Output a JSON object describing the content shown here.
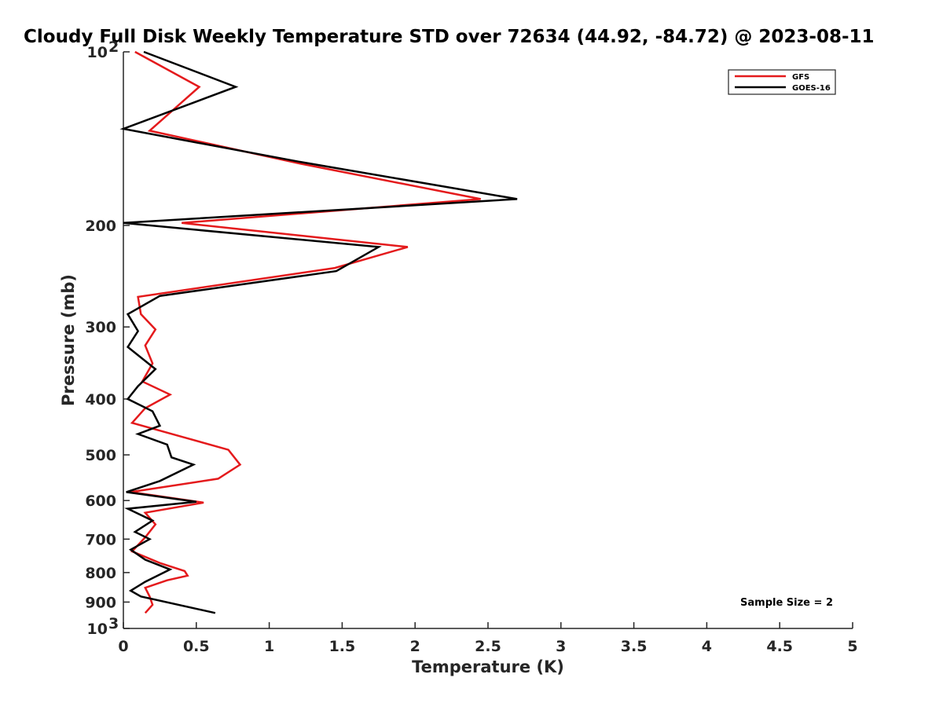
{
  "chart_data": {
    "type": "line",
    "title": "Cloudy Full Disk Weekly Temperature STD over 72634 (44.92, -84.72) @ 2023-08-11",
    "xlabel": "Temperature (K)",
    "ylabel": "Pressure (mb)",
    "xlim": [
      0,
      5
    ],
    "ylim": [
      100,
      1000
    ],
    "y_scale": "log",
    "y_reversed": true,
    "x_ticks": [
      "0",
      "0.5",
      "1",
      "1.5",
      "2",
      "2.5",
      "3",
      "3.5",
      "4",
      "4.5",
      "5"
    ],
    "y_ticks": [
      {
        "value": 100,
        "label": "10",
        "sup": "2"
      },
      {
        "value": 200,
        "label": "200"
      },
      {
        "value": 300,
        "label": "300"
      },
      {
        "value": 400,
        "label": "400"
      },
      {
        "value": 500,
        "label": "500"
      },
      {
        "value": 600,
        "label": "600"
      },
      {
        "value": 700,
        "label": "700"
      },
      {
        "value": 800,
        "label": "800"
      },
      {
        "value": 900,
        "label": "900"
      },
      {
        "value": 1000,
        "label": "10",
        "sup": "3"
      }
    ],
    "grid": false,
    "legend_position": "top-right",
    "annotation": "Sample Size = 2",
    "series": [
      {
        "name": "GFS",
        "color": "#e41a1c",
        "points": [
          [
            0.08,
            100
          ],
          [
            0.52,
            115
          ],
          [
            0.18,
            137
          ],
          [
            1.2,
            156
          ],
          [
            2.45,
            180
          ],
          [
            0.4,
            198
          ],
          [
            1.95,
            218
          ],
          [
            1.45,
            237
          ],
          [
            0.1,
            266
          ],
          [
            0.12,
            285
          ],
          [
            0.22,
            303
          ],
          [
            0.15,
            323
          ],
          [
            0.2,
            347
          ],
          [
            0.13,
            373
          ],
          [
            0.32,
            393
          ],
          [
            0.15,
            415
          ],
          [
            0.06,
            440
          ],
          [
            0.4,
            465
          ],
          [
            0.72,
            490
          ],
          [
            0.8,
            520
          ],
          [
            0.65,
            550
          ],
          [
            0.05,
            580
          ],
          [
            0.55,
            605
          ],
          [
            0.15,
            630
          ],
          [
            0.22,
            660
          ],
          [
            0.15,
            695
          ],
          [
            0.06,
            735
          ],
          [
            0.25,
            770
          ],
          [
            0.42,
            795
          ],
          [
            0.44,
            810
          ],
          [
            0.3,
            825
          ],
          [
            0.15,
            850
          ],
          [
            0.18,
            880
          ],
          [
            0.2,
            910
          ],
          [
            0.15,
            940
          ]
        ]
      },
      {
        "name": "GOES-16",
        "color": "#000000",
        "points": [
          [
            0.14,
            100
          ],
          [
            0.77,
            115
          ],
          [
            0.0,
            136
          ],
          [
            1.2,
            155
          ],
          [
            2.7,
            180
          ],
          [
            0.0,
            198
          ],
          [
            1.75,
            218
          ],
          [
            1.46,
            240
          ],
          [
            0.25,
            265
          ],
          [
            0.03,
            285
          ],
          [
            0.1,
            305
          ],
          [
            0.03,
            325
          ],
          [
            0.22,
            355
          ],
          [
            0.1,
            380
          ],
          [
            0.03,
            400
          ],
          [
            0.2,
            420
          ],
          [
            0.25,
            445
          ],
          [
            0.1,
            460
          ],
          [
            0.3,
            480
          ],
          [
            0.33,
            505
          ],
          [
            0.48,
            520
          ],
          [
            0.25,
            555
          ],
          [
            0.02,
            580
          ],
          [
            0.5,
            603
          ],
          [
            0.03,
            620
          ],
          [
            0.2,
            650
          ],
          [
            0.08,
            680
          ],
          [
            0.18,
            700
          ],
          [
            0.05,
            730
          ],
          [
            0.15,
            760
          ],
          [
            0.32,
            790
          ],
          [
            0.15,
            830
          ],
          [
            0.05,
            860
          ],
          [
            0.12,
            880
          ],
          [
            0.63,
            940
          ]
        ]
      }
    ]
  }
}
